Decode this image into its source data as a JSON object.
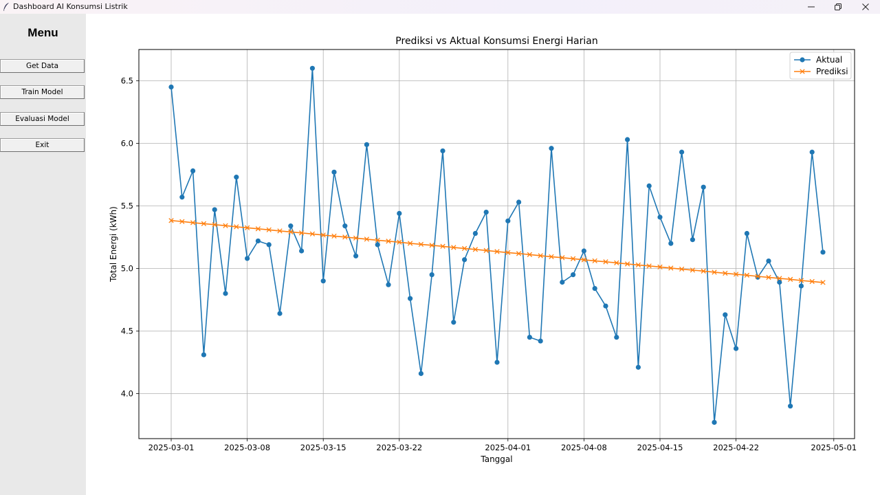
{
  "window": {
    "title": "Dashboard AI Konsumsi Listrik",
    "icon": "feather-icon",
    "controls": [
      "minimize-icon",
      "restore-icon",
      "close-icon"
    ]
  },
  "sidebar": {
    "title": "Menu",
    "buttons": [
      {
        "label": "Get Data"
      },
      {
        "label": "Train Model"
      },
      {
        "label": "Evaluasi Model"
      },
      {
        "label": "Exit"
      }
    ]
  },
  "chart_data": {
    "type": "line",
    "title": "Prediksi vs Aktual Konsumsi Energi Harian",
    "xlabel": "Tanggal",
    "ylabel": "Total Energi (kWh)",
    "x_start": "2025-03-01",
    "x_ticks": [
      "2025-03-01",
      "2025-03-08",
      "2025-03-15",
      "2025-03-22",
      "2025-04-01",
      "2025-04-08",
      "2025-04-15",
      "2025-04-22",
      "2025-05-01"
    ],
    "y_ticks": [
      4.0,
      4.5,
      5.0,
      5.5,
      6.0,
      6.5
    ],
    "ylim": [
      3.64,
      6.75
    ],
    "grid": true,
    "legend_position": "top-right",
    "series": [
      {
        "name": "Aktual",
        "color": "#1f77b4",
        "marker": "circle",
        "values": [
          6.45,
          5.57,
          5.78,
          4.31,
          5.47,
          4.8,
          5.73,
          5.08,
          5.22,
          5.19,
          4.64,
          5.34,
          5.14,
          6.6,
          4.9,
          5.77,
          5.34,
          5.1,
          5.99,
          5.19,
          4.87,
          5.44,
          4.76,
          4.16,
          4.95,
          5.94,
          4.57,
          5.07,
          5.28,
          5.45,
          4.25,
          5.38,
          5.53,
          4.45,
          4.42,
          5.96,
          4.89,
          4.95,
          5.14,
          4.84,
          4.7,
          4.45,
          6.03,
          4.21,
          5.66,
          5.41,
          5.2,
          5.93,
          5.23,
          5.65,
          3.77,
          4.63,
          4.36,
          5.28,
          4.93,
          5.06,
          4.89,
          3.9,
          4.86,
          5.93,
          5.13
        ]
      },
      {
        "name": "Prediksi",
        "color": "#ff7f0e",
        "marker": "x",
        "values": [
          5.383,
          5.375,
          5.366,
          5.358,
          5.35,
          5.342,
          5.333,
          5.325,
          5.317,
          5.309,
          5.3,
          5.292,
          5.284,
          5.276,
          5.267,
          5.259,
          5.251,
          5.243,
          5.234,
          5.226,
          5.218,
          5.21,
          5.201,
          5.193,
          5.185,
          5.177,
          5.168,
          5.16,
          5.152,
          5.144,
          5.135,
          5.127,
          5.119,
          5.111,
          5.102,
          5.094,
          5.086,
          5.078,
          5.069,
          5.061,
          5.053,
          5.045,
          5.036,
          5.028,
          5.02,
          5.012,
          5.003,
          4.995,
          4.987,
          4.979,
          4.97,
          4.962,
          4.954,
          4.946,
          4.937,
          4.929,
          4.921,
          4.913,
          4.904,
          4.896,
          4.888
        ]
      }
    ]
  }
}
